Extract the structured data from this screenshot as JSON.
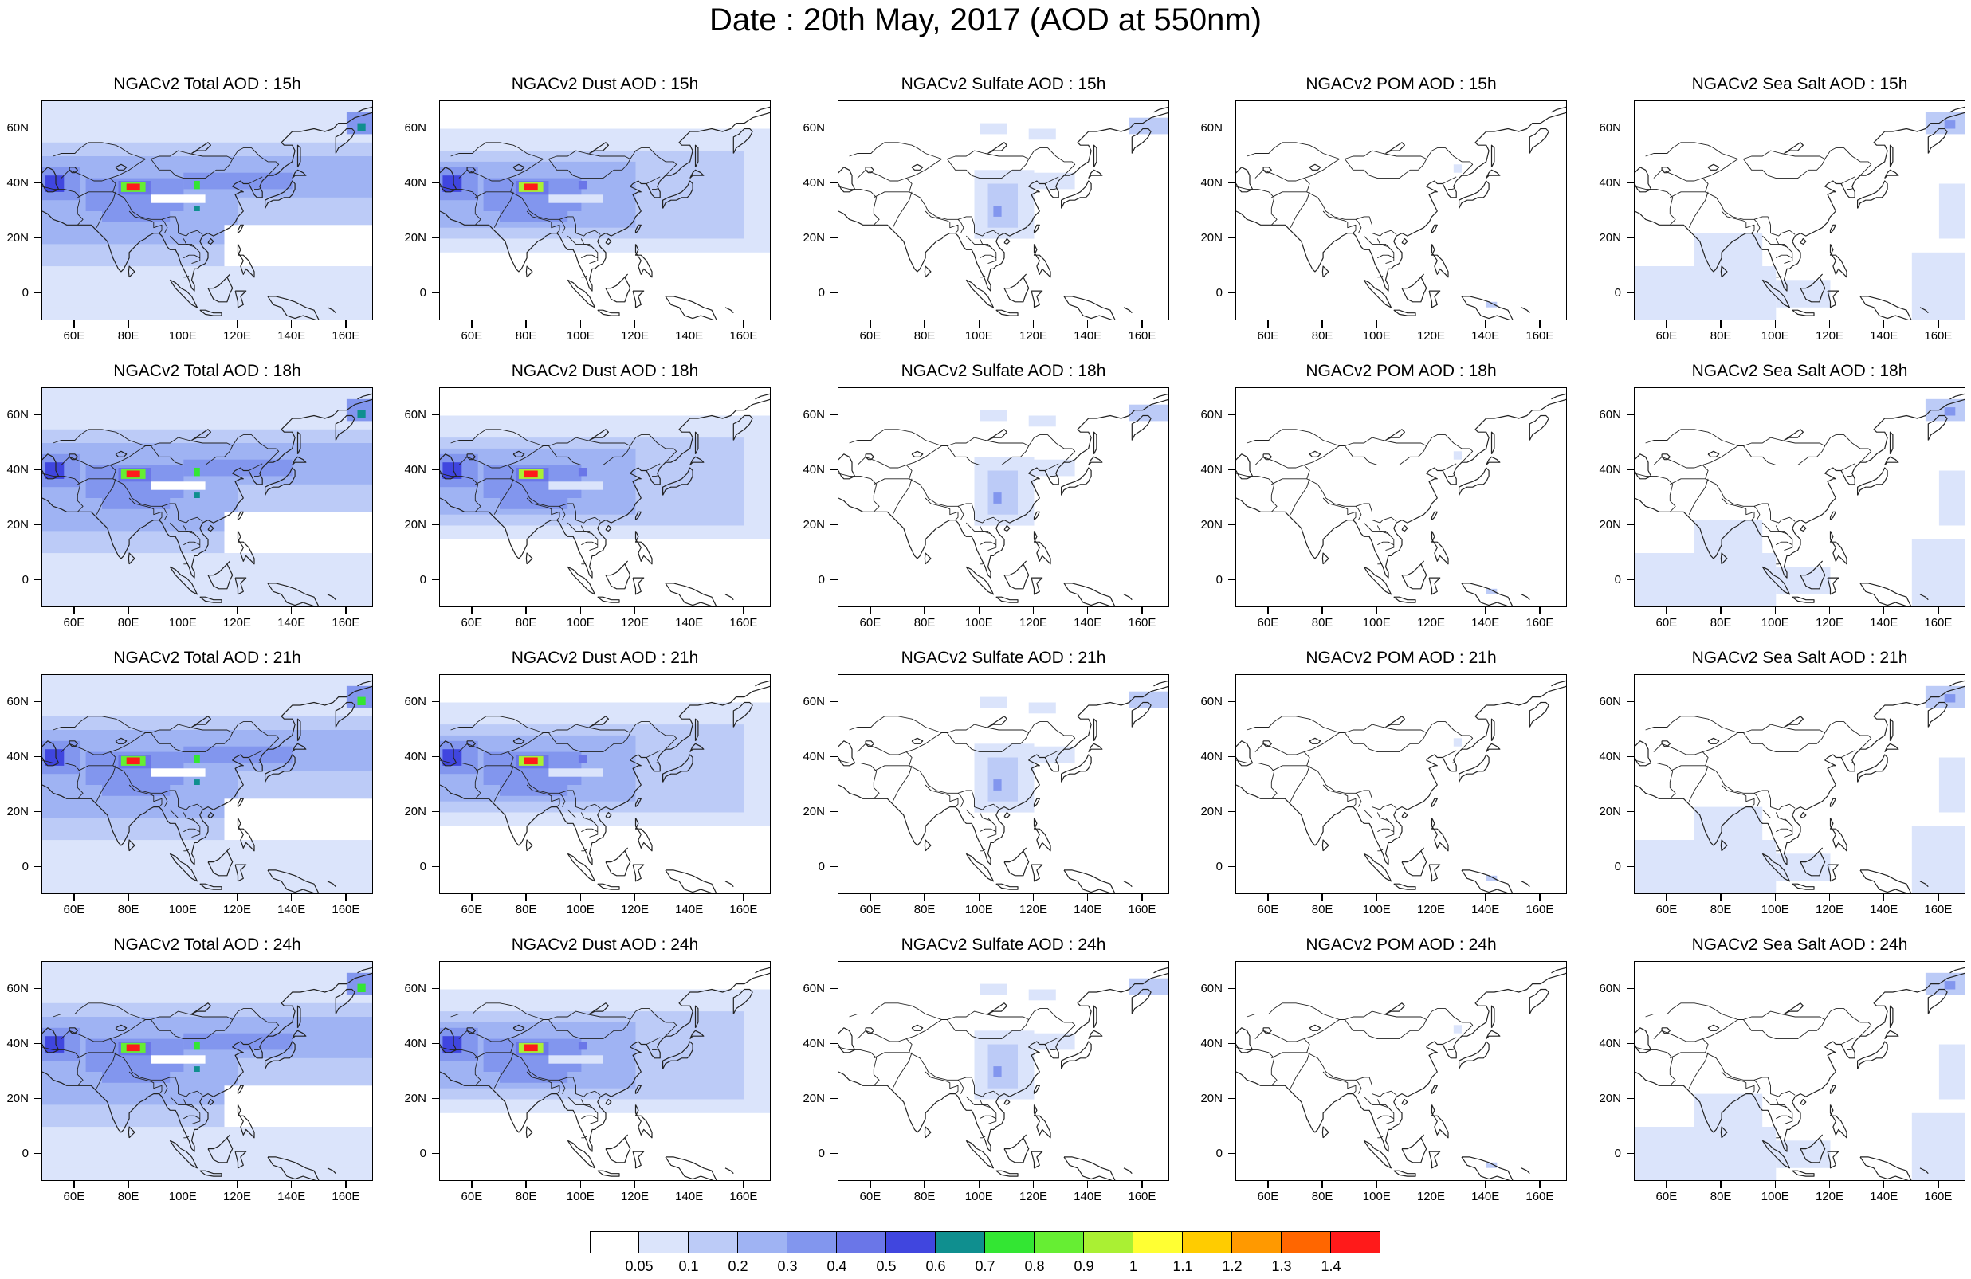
{
  "title": "Date : 20th May, 2017 (AOD at 550nm)",
  "panels": [
    {
      "title": "NGACv2 Total AOD : 15h",
      "species": "total",
      "hour": "15h"
    },
    {
      "title": "NGACv2 Dust AOD : 15h",
      "species": "dust",
      "hour": "15h"
    },
    {
      "title": "NGACv2 Sulfate AOD : 15h",
      "species": "sulfate",
      "hour": "15h"
    },
    {
      "title": "NGACv2 POM AOD : 15h",
      "species": "pom",
      "hour": "15h"
    },
    {
      "title": "NGACv2 Sea Salt AOD : 15h",
      "species": "seasalt",
      "hour": "15h"
    },
    {
      "title": "NGACv2 Total AOD : 18h",
      "species": "total",
      "hour": "18h"
    },
    {
      "title": "NGACv2 Dust AOD : 18h",
      "species": "dust",
      "hour": "18h"
    },
    {
      "title": "NGACv2 Sulfate AOD : 18h",
      "species": "sulfate",
      "hour": "18h"
    },
    {
      "title": "NGACv2 POM AOD : 18h",
      "species": "pom",
      "hour": "18h"
    },
    {
      "title": "NGACv2 Sea Salt AOD : 18h",
      "species": "seasalt",
      "hour": "18h"
    },
    {
      "title": "NGACv2 Total AOD : 21h",
      "species": "total",
      "hour": "21h"
    },
    {
      "title": "NGACv2 Dust AOD : 21h",
      "species": "dust",
      "hour": "21h"
    },
    {
      "title": "NGACv2 Sulfate AOD : 21h",
      "species": "sulfate",
      "hour": "21h"
    },
    {
      "title": "NGACv2 POM AOD : 21h",
      "species": "pom",
      "hour": "21h"
    },
    {
      "title": "NGACv2 Sea Salt AOD : 21h",
      "species": "seasalt",
      "hour": "21h"
    },
    {
      "title": "NGACv2 Total AOD : 24h",
      "species": "total",
      "hour": "24h"
    },
    {
      "title": "NGACv2 Dust AOD : 24h",
      "species": "dust",
      "hour": "24h"
    },
    {
      "title": "NGACv2 Sulfate AOD : 24h",
      "species": "sulfate",
      "hour": "24h"
    },
    {
      "title": "NGACv2 POM AOD : 24h",
      "species": "pom",
      "hour": "24h"
    },
    {
      "title": "NGACv2 Sea Salt  AOD : 24h",
      "species": "seasalt",
      "hour": "24h"
    }
  ],
  "map_extent": {
    "lon_range": [
      48,
      170
    ],
    "lat_range": [
      -10,
      70
    ]
  },
  "lat_ticks": [
    {
      "value": 60,
      "label": "60N"
    },
    {
      "value": 40,
      "label": "40N"
    },
    {
      "value": 20,
      "label": "20N"
    },
    {
      "value": 0,
      "label": "0"
    }
  ],
  "lon_ticks": [
    {
      "value": 60,
      "label": "60E"
    },
    {
      "value": 80,
      "label": "80E"
    },
    {
      "value": 100,
      "label": "100E"
    },
    {
      "value": 120,
      "label": "120E"
    },
    {
      "value": 140,
      "label": "140E"
    },
    {
      "value": 160,
      "label": "160E"
    }
  ],
  "colorbar": {
    "labels": [
      "0.05",
      "0.1",
      "0.2",
      "0.3",
      "0.4",
      "0.5",
      "0.6",
      "0.7",
      "0.8",
      "0.9",
      "1",
      "1.1",
      "1.2",
      "1.3",
      "1.4"
    ],
    "colors": [
      "#ffffff",
      "#dbe4fb",
      "#bccbf7",
      "#9fb3f3",
      "#8296ee",
      "#6a76e8",
      "#4046df",
      "#0f8f8f",
      "#33e633",
      "#66ee33",
      "#aaf033",
      "#ffff33",
      "#ffcc00",
      "#ff9900",
      "#ff6600",
      "#ff1a1a"
    ]
  }
}
